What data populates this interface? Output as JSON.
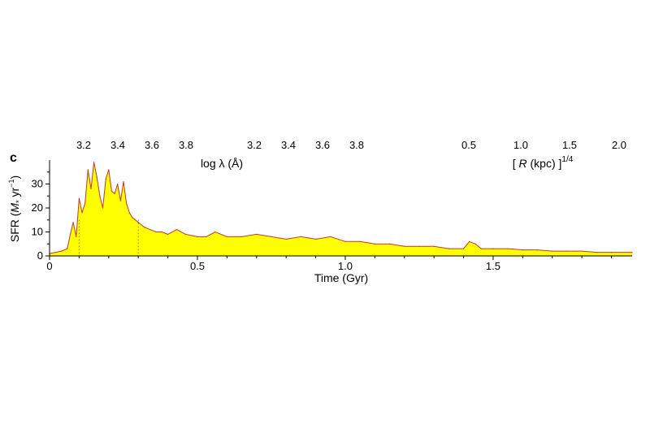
{
  "panel_label": "c",
  "top_strip": {
    "left_ticks": [
      "3.2",
      "3.4",
      "3.6",
      "3.8"
    ],
    "middle_ticks": [
      "3.2",
      "3.4",
      "3.6",
      "3.8"
    ],
    "right_ticks": [
      "0.5",
      "1.0",
      "1.5",
      "2.0"
    ],
    "left_label": "log λ (Å)",
    "right_label_prefix": "[ ",
    "right_label_var": "R",
    "right_label_suffix": " (kpc) ]",
    "right_label_exp": "1/4"
  },
  "chart_data": {
    "type": "area",
    "title": "",
    "xlabel": "Time (Gyr)",
    "ylabel_prefix": "SFR (",
    "ylabel_var": "M",
    "ylabel_sub": "*",
    "ylabel_unit": " yr",
    "ylabel_exp": "−1",
    "ylabel_suffix": ")",
    "xlim": [
      0,
      1.97
    ],
    "ylim": [
      0,
      40
    ],
    "x_ticks": [
      0,
      0.5,
      1.0,
      1.5
    ],
    "x_tick_labels": [
      "0",
      "0.5",
      "1.0",
      "1.5"
    ],
    "y_ticks": [
      0,
      10,
      20,
      30
    ],
    "y_tick_labels": [
      "0",
      "10",
      "20",
      "30"
    ],
    "fill_color": "#ffff00",
    "line_color": "#c0392b",
    "guide_lines_x": [
      0.1,
      0.3
    ],
    "series": [
      {
        "x": [
          0,
          0.02,
          0.04,
          0.06,
          0.07,
          0.08,
          0.09,
          0.1,
          0.11,
          0.12,
          0.13,
          0.14,
          0.15,
          0.16,
          0.17,
          0.18,
          0.19,
          0.2,
          0.21,
          0.22,
          0.23,
          0.24,
          0.25,
          0.26,
          0.27,
          0.28,
          0.3,
          0.32,
          0.34,
          0.36,
          0.38,
          0.4,
          0.43,
          0.46,
          0.5,
          0.53,
          0.56,
          0.6,
          0.65,
          0.7,
          0.75,
          0.8,
          0.85,
          0.9,
          0.95,
          1.0,
          1.05,
          1.1,
          1.15,
          1.2,
          1.25,
          1.3,
          1.35,
          1.4,
          1.42,
          1.44,
          1.46,
          1.5,
          1.55,
          1.6,
          1.65,
          1.7,
          1.75,
          1.8,
          1.85,
          1.9,
          1.97
        ],
        "y": [
          1,
          1.5,
          2,
          3,
          9,
          14,
          8,
          24,
          18,
          22,
          36,
          28,
          39,
          33,
          25,
          20,
          32,
          36,
          27,
          26,
          30,
          23,
          31,
          22,
          18,
          16,
          14,
          12,
          11,
          10,
          10,
          9,
          11,
          9,
          8,
          8,
          10,
          8,
          8,
          9,
          8,
          7,
          8,
          7,
          8,
          6,
          6,
          5,
          5,
          4,
          4,
          4,
          3,
          3,
          6,
          5,
          3,
          3,
          3,
          2.5,
          2.5,
          2,
          2,
          2,
          1.5,
          1.5,
          1.5
        ]
      }
    ]
  }
}
